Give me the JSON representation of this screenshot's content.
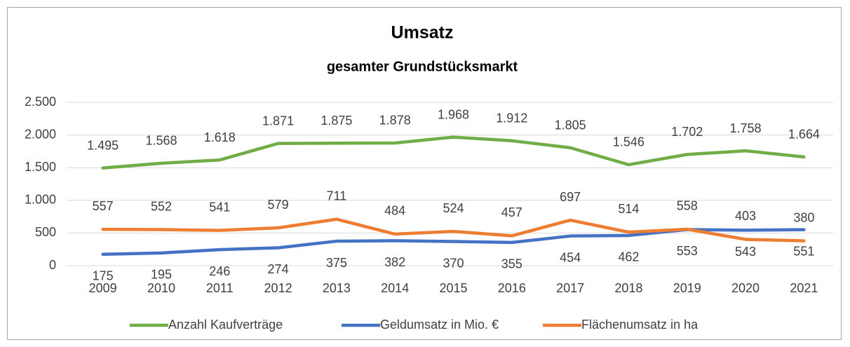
{
  "chart_data": {
    "type": "line",
    "title": "Umsatz",
    "subtitle": "gesamter Grundstücksmarkt",
    "categories": [
      "2009",
      "2010",
      "2011",
      "2012",
      "2013",
      "2014",
      "2015",
      "2016",
      "2017",
      "2018",
      "2019",
      "2020",
      "2021"
    ],
    "series": [
      {
        "name": "Anzahl Kaufverträge",
        "color": "#70ad47",
        "values": [
          1495,
          1568,
          1618,
          1871,
          1875,
          1878,
          1968,
          1912,
          1805,
          1546,
          1702,
          1758,
          1664
        ],
        "value_labels": [
          "1.495",
          "1.568",
          "1.618",
          "1.871",
          "1.875",
          "1.878",
          "1.968",
          "1.912",
          "1.805",
          "1.546",
          "1.702",
          "1.758",
          "1.664"
        ]
      },
      {
        "name": "Geldumsatz in Mio. €",
        "color": "#4472c4",
        "values": [
          175,
          195,
          246,
          274,
          375,
          382,
          370,
          355,
          454,
          462,
          553,
          543,
          551
        ]
      },
      {
        "name": "Flächenumsatz in ha",
        "color": "#ed7d31",
        "values": [
          557,
          552,
          541,
          579,
          711,
          484,
          524,
          457,
          697,
          514,
          558,
          403,
          380
        ]
      }
    ],
    "ylim": [
      0,
      2500
    ],
    "yticks": [
      0,
      500,
      {
        "value": 1000,
        "label": "1.000"
      },
      {
        "value": 1500,
        "label": "1.500"
      },
      {
        "value": 2000,
        "label": "2.000"
      },
      {
        "value": 2500,
        "label": "2.500"
      }
    ],
    "grid": true,
    "legend": "bottom"
  }
}
